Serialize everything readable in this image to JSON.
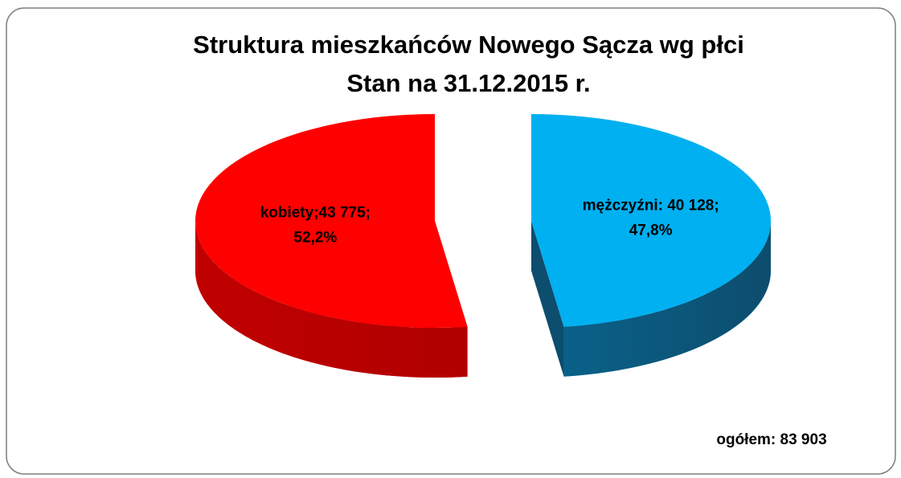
{
  "chart_data": {
    "type": "pie3d",
    "title": [
      "Struktura mieszkańców Nowego Sącza wg płci",
      "Stan na 31.12.2015 r."
    ],
    "values": [
      43775,
      40128
    ],
    "value_labels": [
      "kobiety;43 775;",
      "mężczyźni: 40 128;"
    ],
    "percents": [
      52.2,
      47.8
    ],
    "percent_labels": [
      "52,2%",
      "47,8%"
    ],
    "colors": [
      "#ff0000",
      "#00b0f0"
    ],
    "side_colors": [
      "#b00000",
      "#0d4d6e"
    ],
    "total": 83903,
    "total_label": "ogółem: 83 903"
  }
}
